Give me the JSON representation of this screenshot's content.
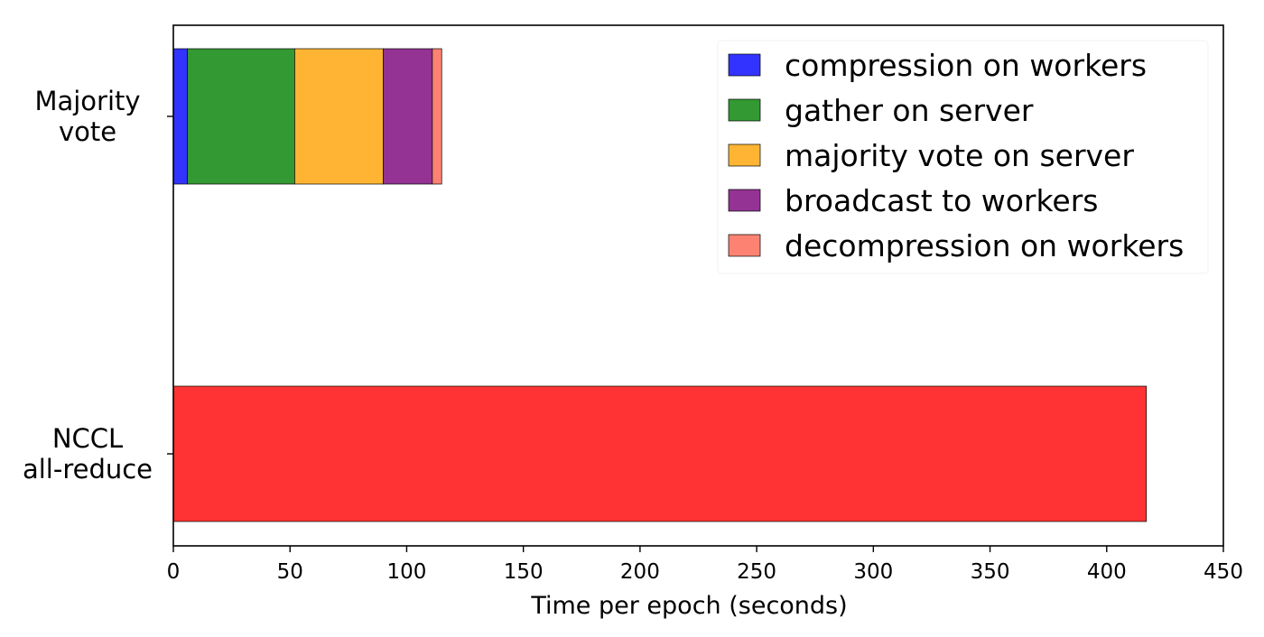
{
  "chart_data": {
    "type": "bar",
    "orientation": "horizontal",
    "stacked": true,
    "title": "",
    "xlabel": "Time per epoch (seconds)",
    "ylabel": "",
    "xlim": [
      0,
      450
    ],
    "xticks": [
      0,
      50,
      100,
      150,
      200,
      250,
      300,
      350,
      400,
      450
    ],
    "grid": false,
    "legend_position": "top-right",
    "categories": [
      {
        "id": "majority",
        "lines": [
          "Majority",
          "vote"
        ]
      },
      {
        "id": "nccl",
        "lines": [
          "NCCL",
          "all-reduce"
        ]
      }
    ],
    "series": [
      {
        "name": "compression on workers",
        "color": "#3333ff",
        "in_legend": true,
        "values": [
          6,
          0
        ]
      },
      {
        "name": "gather on server",
        "color": "#339933",
        "in_legend": true,
        "values": [
          46,
          0
        ]
      },
      {
        "name": "majority vote on server",
        "color": "#ffb533",
        "in_legend": true,
        "values": [
          38,
          0
        ]
      },
      {
        "name": "broadcast to workers",
        "color": "#943394",
        "in_legend": true,
        "values": [
          21,
          0
        ]
      },
      {
        "name": "decompression on workers",
        "color": "#fd8272",
        "in_legend": true,
        "values": [
          4,
          0
        ]
      },
      {
        "name": "",
        "color": "#ff3333",
        "in_legend": false,
        "values": [
          0,
          417
        ]
      }
    ]
  }
}
